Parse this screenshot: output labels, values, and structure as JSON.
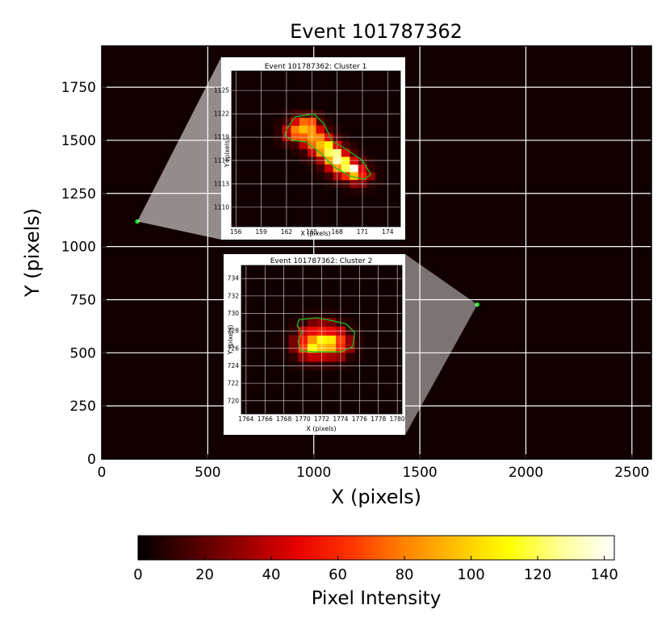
{
  "chart_data": [
    {
      "type": "heatmap",
      "title": "Event 101787362",
      "xlabel": "X (pixels)",
      "ylabel": "Y (pixels)",
      "xlim": [
        0,
        2592
      ],
      "ylim": [
        0,
        1944
      ],
      "xticks": [
        0,
        500,
        1000,
        1500,
        2000,
        2500
      ],
      "yticks": [
        0,
        250,
        500,
        750,
        1000,
        1250,
        1500,
        1750
      ],
      "grid": true,
      "background_color": "#120000",
      "grid_color": "#ffffff",
      "cluster_points": [
        {
          "x": 168,
          "y": 1118,
          "color": "#22dd22"
        },
        {
          "x": 1771,
          "y": 727,
          "color": "#22dd22"
        }
      ]
    },
    {
      "type": "heatmap",
      "title": "Event 101787362: Cluster 1",
      "xlabel": "X (pixels)",
      "ylabel": "Y (pixels)",
      "xlim": [
        155.5,
        175.5
      ],
      "ylim": [
        1107.5,
        1127.5
      ],
      "xticks": [
        156,
        159,
        162,
        165,
        168,
        171,
        174
      ],
      "yticks": [
        1110,
        1113,
        1116,
        1119,
        1122,
        1125
      ],
      "grid": true,
      "contour_color": "#22bb22",
      "contour": [
        [
          162.0,
          1120.0
        ],
        [
          163.0,
          1121.6
        ],
        [
          165.2,
          1122.0
        ],
        [
          166.4,
          1120.8
        ],
        [
          167.4,
          1118.5
        ],
        [
          169.0,
          1117.5
        ],
        [
          171.0,
          1116.0
        ],
        [
          172.0,
          1114.2
        ],
        [
          171.2,
          1113.6
        ],
        [
          169.5,
          1114.0
        ],
        [
          167.6,
          1115.2
        ],
        [
          166.0,
          1117.0
        ],
        [
          164.3,
          1118.4
        ],
        [
          162.6,
          1118.6
        ],
        [
          161.8,
          1119.2
        ]
      ],
      "pixels": [
        {
          "x": 163,
          "y": 1120,
          "v": 80
        },
        {
          "x": 164,
          "y": 1121,
          "v": 75
        },
        {
          "x": 165,
          "y": 1121,
          "v": 70
        },
        {
          "x": 163,
          "y": 1119,
          "v": 70
        },
        {
          "x": 164,
          "y": 1120,
          "v": 95
        },
        {
          "x": 165,
          "y": 1120,
          "v": 85
        },
        {
          "x": 164,
          "y": 1119,
          "v": 72
        },
        {
          "x": 165,
          "y": 1119,
          "v": 85
        },
        {
          "x": 166,
          "y": 1119,
          "v": 80
        },
        {
          "x": 165,
          "y": 1118,
          "v": 75
        },
        {
          "x": 166,
          "y": 1118,
          "v": 95
        },
        {
          "x": 167,
          "y": 1118,
          "v": 110
        },
        {
          "x": 166,
          "y": 1117,
          "v": 85
        },
        {
          "x": 167,
          "y": 1117,
          "v": 120
        },
        {
          "x": 168,
          "y": 1117,
          "v": 125
        },
        {
          "x": 167,
          "y": 1116,
          "v": 90
        },
        {
          "x": 168,
          "y": 1116,
          "v": 130
        },
        {
          "x": 169,
          "y": 1116,
          "v": 115
        },
        {
          "x": 168,
          "y": 1115,
          "v": 85
        },
        {
          "x": 169,
          "y": 1115,
          "v": 120
        },
        {
          "x": 170,
          "y": 1115,
          "v": 140
        },
        {
          "x": 169,
          "y": 1114,
          "v": 60
        },
        {
          "x": 170,
          "y": 1114,
          "v": 95
        },
        {
          "x": 171,
          "y": 1114,
          "v": 55
        },
        {
          "x": 162,
          "y": 1120,
          "v": 40
        },
        {
          "x": 162,
          "y": 1119,
          "v": 35
        },
        {
          "x": 163,
          "y": 1121,
          "v": 45
        },
        {
          "x": 166,
          "y": 1120,
          "v": 45
        },
        {
          "x": 167,
          "y": 1119,
          "v": 45
        },
        {
          "x": 164,
          "y": 1118,
          "v": 40
        },
        {
          "x": 165,
          "y": 1117,
          "v": 40
        },
        {
          "x": 168,
          "y": 1118,
          "v": 45
        },
        {
          "x": 169,
          "y": 1117,
          "v": 45
        },
        {
          "x": 166,
          "y": 1116,
          "v": 35
        },
        {
          "x": 167,
          "y": 1115,
          "v": 40
        },
        {
          "x": 170,
          "y": 1116,
          "v": 45
        },
        {
          "x": 171,
          "y": 1115,
          "v": 45
        },
        {
          "x": 168,
          "y": 1114,
          "v": 35
        },
        {
          "x": 170,
          "y": 1113,
          "v": 30
        },
        {
          "x": 171,
          "y": 1113,
          "v": 25
        },
        {
          "x": 172,
          "y": 1114,
          "v": 30
        }
      ]
    },
    {
      "type": "heatmap",
      "title": "Event 101787362: Cluster 2",
      "xlabel": "X (pixels)",
      "ylabel": "Y (pixels)",
      "xlim": [
        1763.5,
        1780.5
      ],
      "ylim": [
        718.5,
        735.5
      ],
      "xticks": [
        1764,
        1766,
        1768,
        1770,
        1772,
        1774,
        1776,
        1778,
        1780
      ],
      "yticks": [
        720,
        722,
        724,
        726,
        728,
        730,
        732,
        734
      ],
      "grid": true,
      "contour_color": "#22bb22",
      "contour": [
        [
          1769.6,
          729.3
        ],
        [
          1771.5,
          729.5
        ],
        [
          1773.0,
          729.2
        ],
        [
          1774.6,
          728.8
        ],
        [
          1775.5,
          727.8
        ],
        [
          1775.3,
          726.2
        ],
        [
          1774.0,
          725.6
        ],
        [
          1771.5,
          725.6
        ],
        [
          1769.8,
          725.7
        ],
        [
          1769.5,
          726.8
        ],
        [
          1769.9,
          727.9
        ],
        [
          1769.4,
          728.6
        ]
      ],
      "pixels": [
        {
          "x": 1770,
          "y": 727,
          "v": 55
        },
        {
          "x": 1771,
          "y": 727,
          "v": 85
        },
        {
          "x": 1772,
          "y": 727,
          "v": 110
        },
        {
          "x": 1773,
          "y": 727,
          "v": 105
        },
        {
          "x": 1774,
          "y": 727,
          "v": 65
        },
        {
          "x": 1770,
          "y": 726,
          "v": 65
        },
        {
          "x": 1771,
          "y": 726,
          "v": 110
        },
        {
          "x": 1772,
          "y": 726,
          "v": 95
        },
        {
          "x": 1773,
          "y": 726,
          "v": 90
        },
        {
          "x": 1774,
          "y": 726,
          "v": 60
        },
        {
          "x": 1770,
          "y": 728,
          "v": 40
        },
        {
          "x": 1771,
          "y": 728,
          "v": 50
        },
        {
          "x": 1772,
          "y": 728,
          "v": 55
        },
        {
          "x": 1773,
          "y": 728,
          "v": 50
        },
        {
          "x": 1774,
          "y": 728,
          "v": 40
        },
        {
          "x": 1769,
          "y": 727,
          "v": 25
        },
        {
          "x": 1769,
          "y": 726,
          "v": 25
        },
        {
          "x": 1775,
          "y": 727,
          "v": 30
        },
        {
          "x": 1775,
          "y": 726,
          "v": 30
        },
        {
          "x": 1770,
          "y": 725,
          "v": 30
        },
        {
          "x": 1771,
          "y": 725,
          "v": 40
        },
        {
          "x": 1772,
          "y": 725,
          "v": 40
        },
        {
          "x": 1773,
          "y": 725,
          "v": 35
        },
        {
          "x": 1774,
          "y": 725,
          "v": 30
        },
        {
          "x": 1771,
          "y": 729,
          "v": 25
        },
        {
          "x": 1772,
          "y": 729,
          "v": 30
        },
        {
          "x": 1773,
          "y": 729,
          "v": 25
        }
      ]
    },
    {
      "type": "colorbar",
      "label": "Pixel Intensity",
      "range": [
        0,
        143
      ],
      "ticks": [
        0,
        20,
        40,
        60,
        80,
        100,
        120,
        140
      ],
      "colormap": [
        "#000000",
        "#4a0000",
        "#990000",
        "#e60000",
        "#ff3300",
        "#ff8000",
        "#ffc000",
        "#ffff00",
        "#ffff99",
        "#ffffff"
      ]
    }
  ]
}
